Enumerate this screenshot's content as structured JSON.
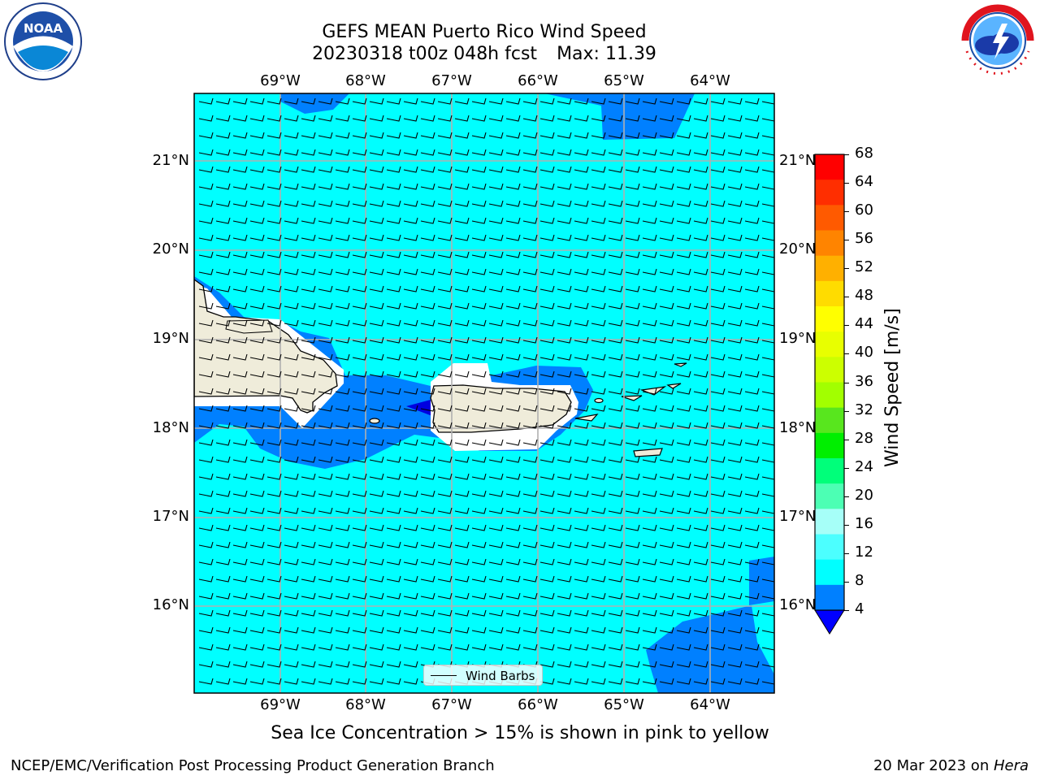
{
  "header": {
    "title_line1": "GEFS MEAN Puerto Rico Wind Speed",
    "date_fcst": "20230318 t00z 048h fcst",
    "max_label": "Max: 11.39"
  },
  "logos": {
    "left": "NOAA",
    "right": "NATIONAL WEATHER SERVICE"
  },
  "map": {
    "lon_ticks": [
      "69°W",
      "68°W",
      "67°W",
      "66°W",
      "65°W",
      "64°W"
    ],
    "lat_ticks": [
      "21°N",
      "20°N",
      "19°N",
      "18°N",
      "17°N",
      "16°N"
    ],
    "legend_label": "Wind Barbs",
    "colors": {
      "ocean": "#00ffff",
      "low_wind": "#0080ff",
      "very_low": "#0000e0",
      "land": "#efecda",
      "grid": "#b0b0b0"
    }
  },
  "colorbar": {
    "title": "Wind Speed [m/s]",
    "ticks": [
      "68",
      "64",
      "60",
      "56",
      "52",
      "48",
      "44",
      "40",
      "36",
      "32",
      "28",
      "24",
      "20",
      "16",
      "12",
      "8",
      "4"
    ],
    "colors": [
      "#ff0000",
      "#ff2e00",
      "#ff5a00",
      "#ff8400",
      "#ffb000",
      "#ffdc00",
      "#ffff00",
      "#e8ff00",
      "#ccff00",
      "#a2ff00",
      "#58e61e",
      "#00ef00",
      "#00ff7a",
      "#4cffb4",
      "#a6fff8",
      "#4cffff",
      "#00ffff",
      "#0080ff"
    ],
    "under_color": "#0000ff"
  },
  "footer": {
    "note": "Sea Ice Concentration > 15% is shown in pink to yellow",
    "left": "NCEP/EMC/Verification Post Processing Product Generation Branch",
    "right_prefix": "20 Mar 2023 on ",
    "right_host": "Hera"
  }
}
